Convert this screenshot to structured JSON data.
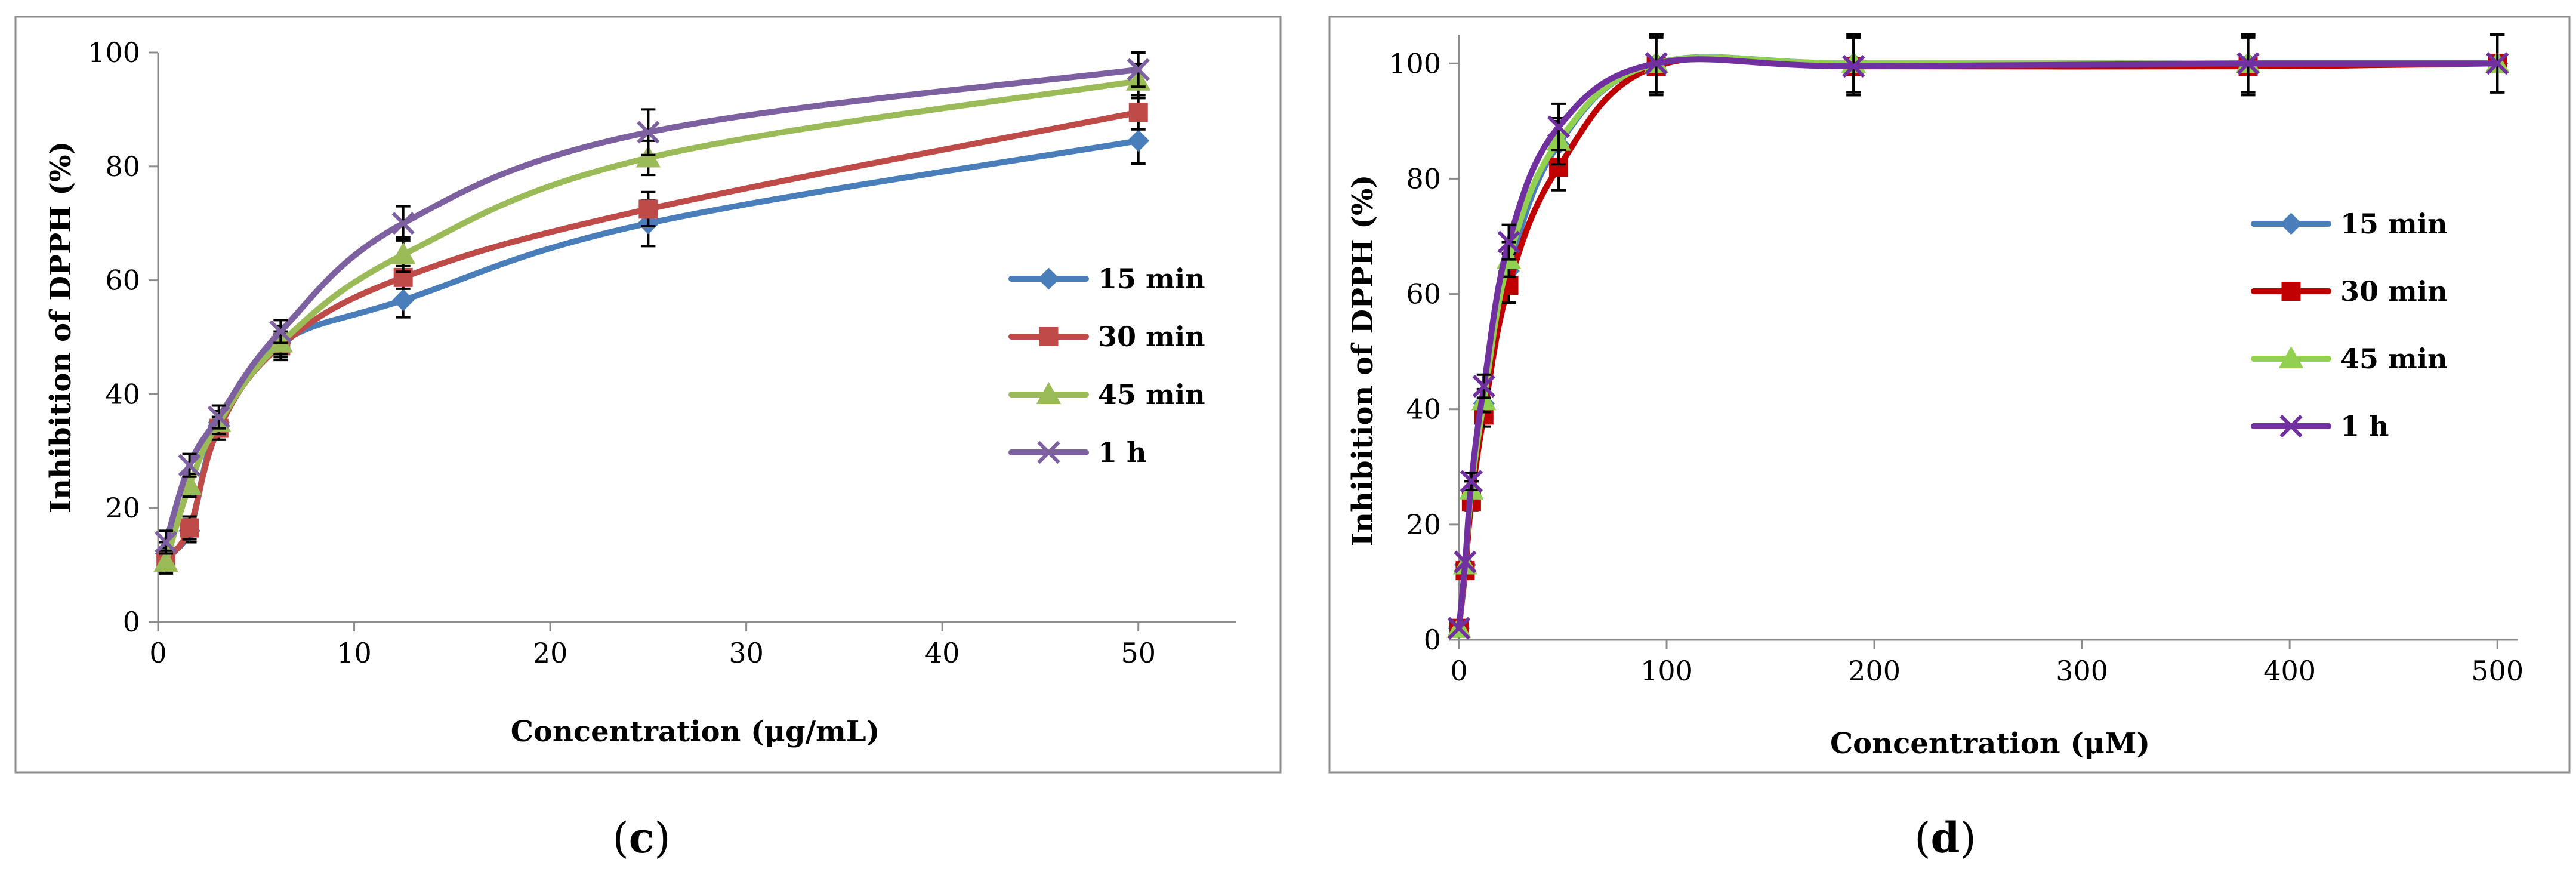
{
  "chart_data": [
    {
      "type": "line",
      "panel_label": "c",
      "xlabel": "Concentration (μg/mL)",
      "ylabel": "Inhibition  of DPPH (%)",
      "xlim": [
        0,
        55
      ],
      "ylim": [
        0,
        100
      ],
      "xticks": [
        0,
        10,
        20,
        30,
        40,
        50
      ],
      "yticks": [
        0,
        20,
        40,
        60,
        80,
        100
      ],
      "legend_position": "right",
      "x": [
        0.4,
        1.6,
        3.1,
        6.25,
        12.5,
        25,
        50
      ],
      "series": [
        {
          "name": "15 min",
          "color": "#4a7ebb",
          "marker": "diamond",
          "values": [
            12,
            16,
            35,
            49,
            56.5,
            70,
            84.5
          ],
          "errors": [
            2,
            2,
            3,
            3,
            3,
            4,
            4
          ]
        },
        {
          "name": "30 min",
          "color": "#be4b48",
          "marker": "square",
          "values": [
            11,
            16.5,
            34,
            48.5,
            60.5,
            72.5,
            89.5
          ],
          "errors": [
            2,
            2,
            2,
            2,
            2,
            3,
            3
          ]
        },
        {
          "name": "45 min",
          "color": "#9bbb59",
          "marker": "triangle",
          "values": [
            10.5,
            24,
            35,
            49,
            64.5,
            81.5,
            95
          ],
          "errors": [
            2,
            2,
            2,
            2,
            3,
            3,
            3
          ]
        },
        {
          "name": "1 h",
          "color": "#7d60a0",
          "marker": "x",
          "values": [
            14,
            27.5,
            36,
            51,
            70,
            86,
            97
          ],
          "errors": [
            2,
            2,
            2,
            2,
            3,
            4,
            3
          ]
        }
      ]
    },
    {
      "type": "line",
      "panel_label": "d",
      "xlabel": "Concentration (μM)",
      "ylabel": "Inhibition  of DPPH (%)",
      "xlim": [
        0,
        510
      ],
      "ylim": [
        0,
        105
      ],
      "xticks": [
        0,
        100,
        200,
        300,
        400,
        500
      ],
      "yticks": [
        0,
        20,
        40,
        60,
        80,
        100
      ],
      "legend_position": "right",
      "x": [
        0,
        3,
        6,
        12,
        24,
        48,
        95,
        190,
        380,
        500
      ],
      "series": [
        {
          "name": "15 min",
          "color": "#4a7ebb",
          "marker": "diamond",
          "values": [
            2,
            13,
            26,
            41,
            64,
            86,
            100,
            100,
            100,
            100
          ],
          "errors": [
            0.5,
            1,
            1.5,
            2,
            3,
            4,
            5,
            5,
            5,
            5
          ]
        },
        {
          "name": "30 min",
          "color": "#c00000",
          "marker": "square",
          "values": [
            2,
            12,
            24,
            39,
            61.5,
            82,
            99.5,
            99.5,
            99.5,
            100
          ],
          "errors": [
            0.5,
            1,
            1.5,
            2,
            3,
            4,
            5,
            5,
            5,
            5
          ]
        },
        {
          "name": "45 min",
          "color": "#92d050",
          "marker": "triangle",
          "values": [
            2,
            13,
            26,
            41.5,
            66,
            86.5,
            100,
            100,
            100,
            100
          ],
          "errors": [
            0.5,
            1,
            1.5,
            2,
            3,
            4,
            5,
            5,
            5,
            5
          ]
        },
        {
          "name": "1 h",
          "color": "#7030a0",
          "marker": "x",
          "values": [
            2,
            13.5,
            27.5,
            44,
            69,
            89,
            100,
            99.5,
            100,
            100
          ],
          "errors": [
            0.5,
            1,
            1.5,
            2,
            3,
            4,
            5,
            5,
            5,
            5
          ]
        }
      ]
    }
  ]
}
